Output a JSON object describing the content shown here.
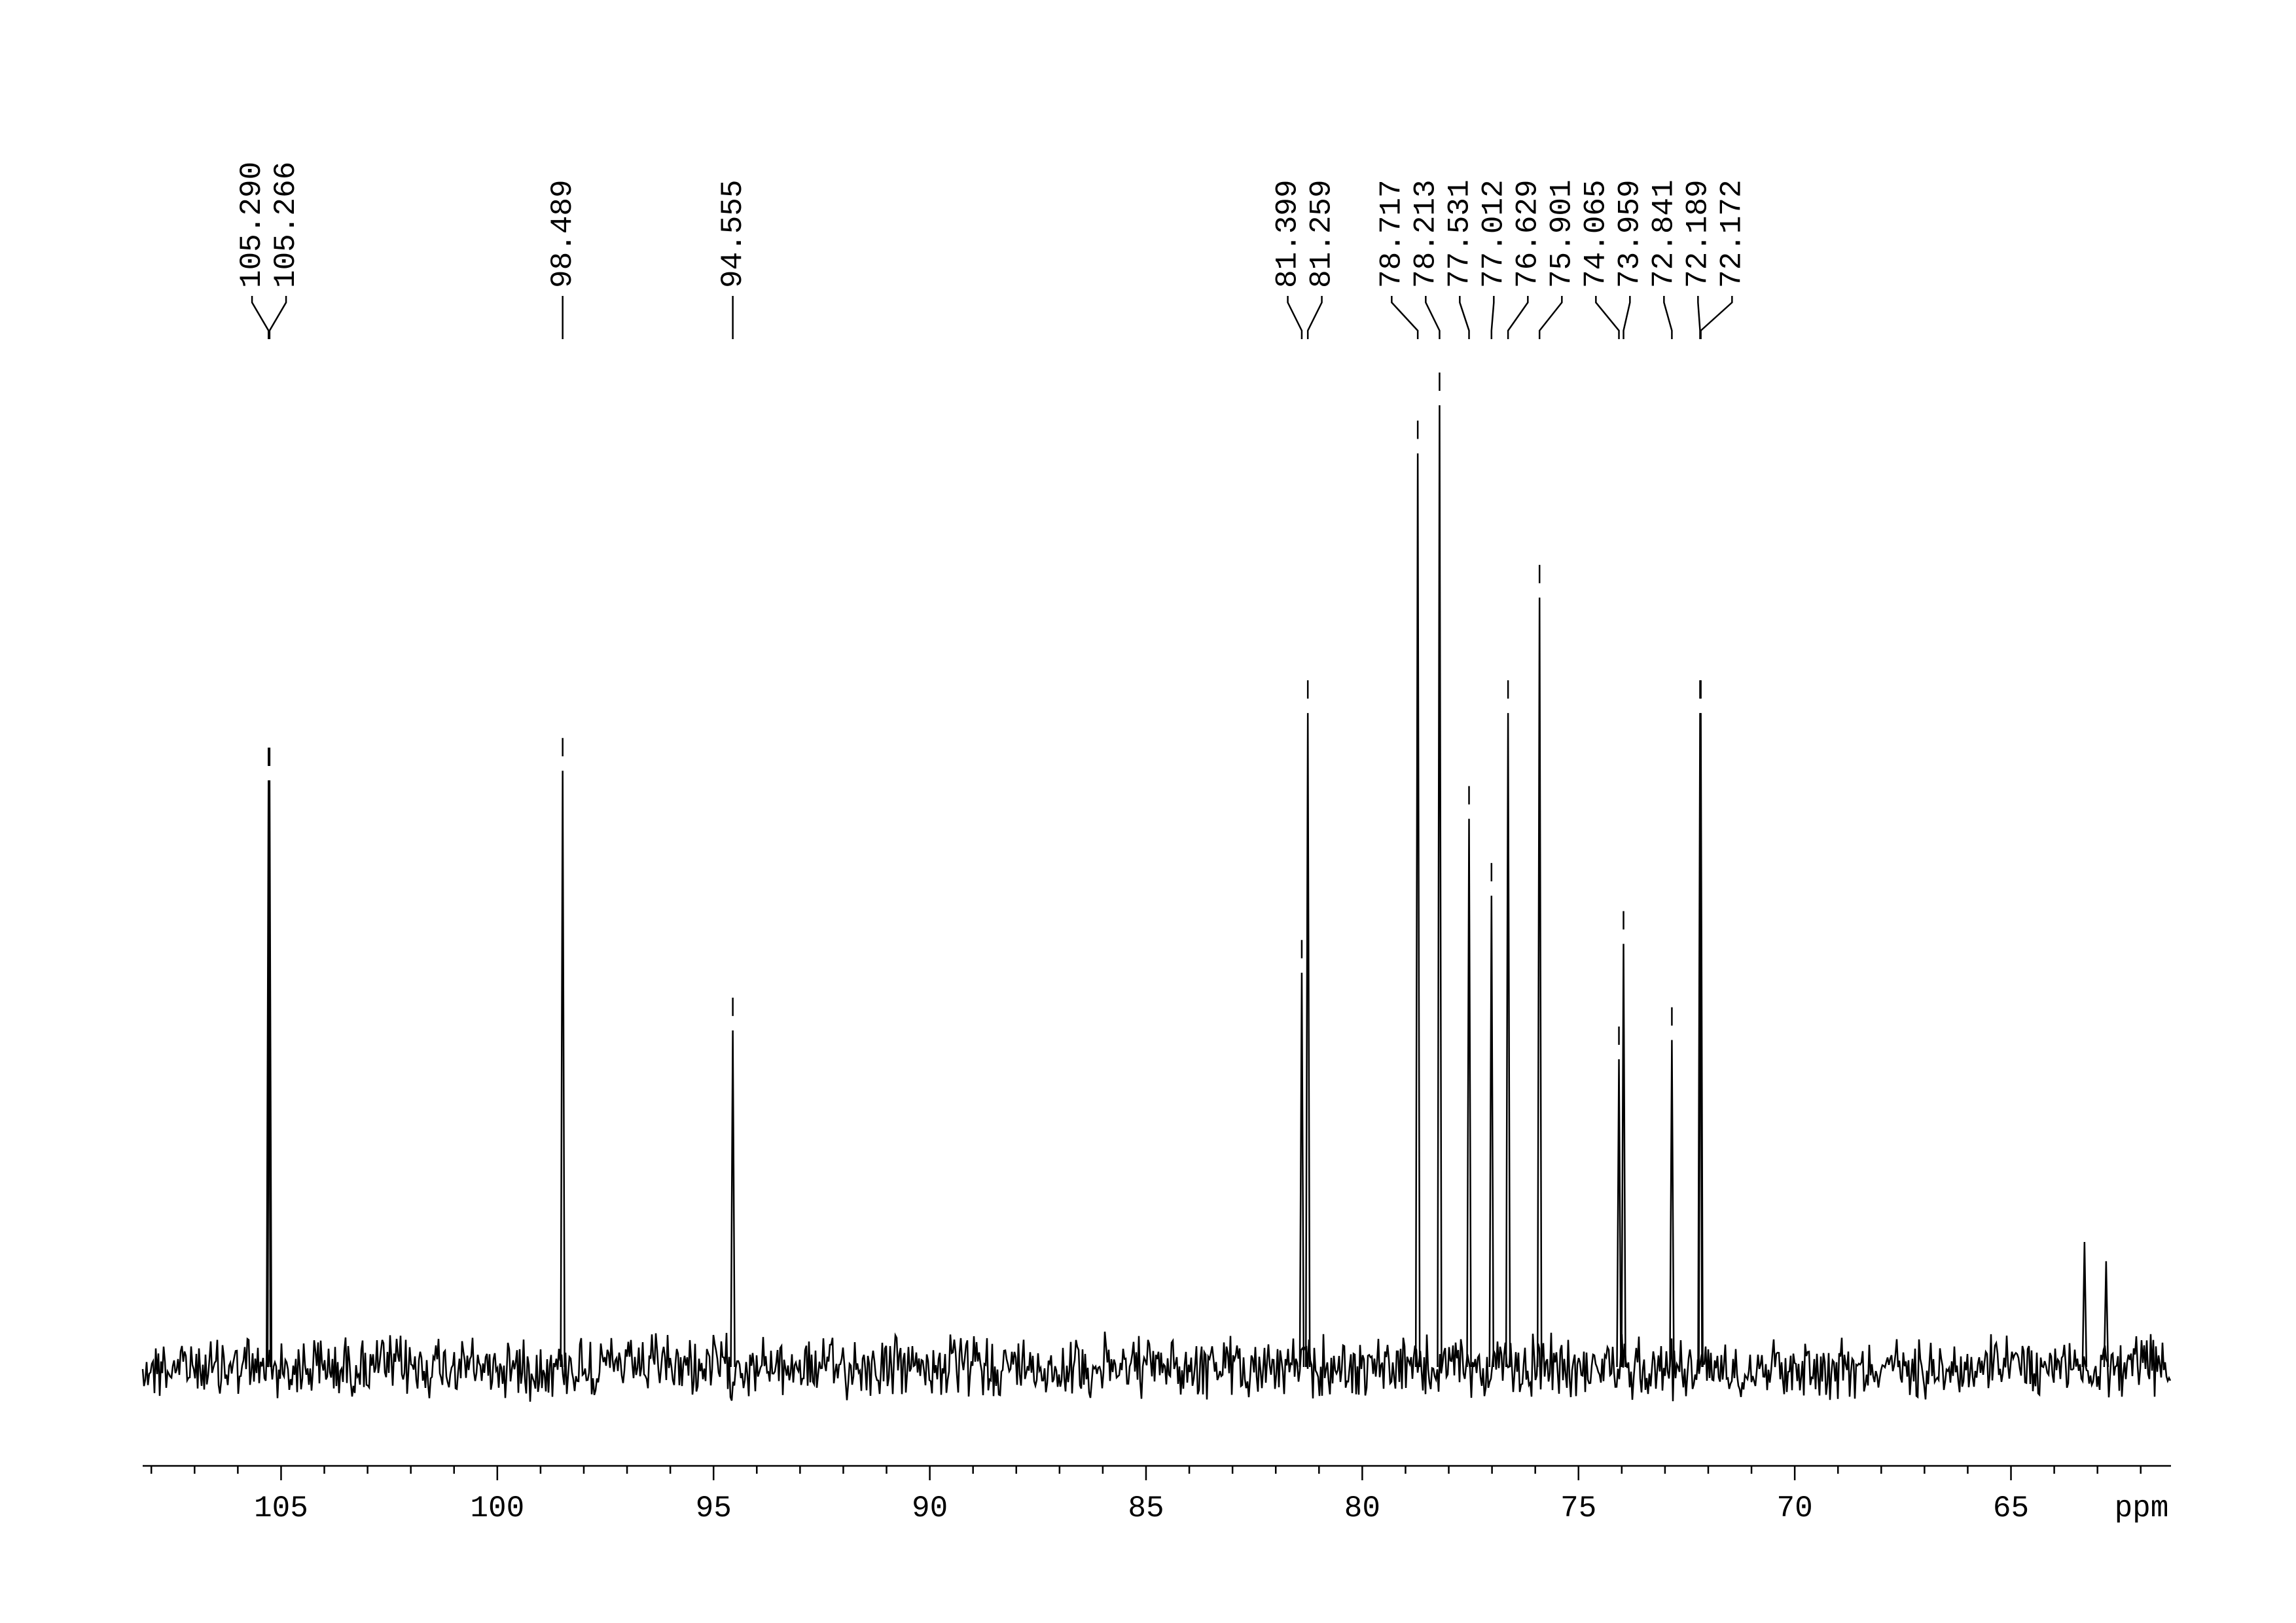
{
  "chart_data": {
    "type": "spectrum",
    "xlabel": "ppm",
    "xlim": [
      108.2,
      61.3
    ],
    "ylim": [
      0,
      100
    ],
    "xticks": [
      105,
      100,
      95,
      90,
      85,
      80,
      75,
      70,
      65
    ],
    "xminorticks": [
      108,
      107,
      106,
      104,
      103,
      102,
      101,
      99,
      98,
      97,
      96,
      94,
      93,
      92,
      91,
      89,
      88,
      87,
      86,
      84,
      83,
      82,
      81,
      79,
      78,
      77,
      76,
      74,
      73,
      72,
      71,
      69,
      68,
      67,
      66,
      64,
      63,
      62
    ],
    "color": "#000000",
    "x": [
      105.29,
      105.266,
      98.489,
      94.555,
      81.399,
      81.259,
      78.717,
      78.213,
      77.531,
      77.012,
      76.629,
      75.901,
      74.065,
      73.959,
      72.841,
      72.189,
      72.172,
      63.3,
      62.8
    ],
    "x_labels": [
      "105.290",
      "105.266",
      "98.489",
      "94.555",
      "81.399",
      "81.259",
      "78.717",
      "78.213",
      "77.531",
      "77.012",
      "76.629",
      "75.901",
      "74.065",
      "73.959",
      "72.841",
      "72.189",
      "72.172",
      null,
      null
    ],
    "values": [
      61,
      61,
      62,
      35,
      41,
      68,
      95,
      100,
      57,
      49,
      68,
      80,
      32,
      44,
      34,
      68,
      68,
      13,
      11
    ]
  }
}
